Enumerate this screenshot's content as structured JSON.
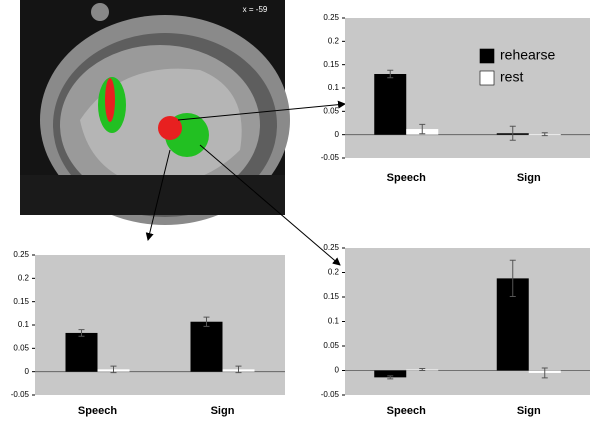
{
  "image": {
    "label": "x = -59"
  },
  "chart_data": [
    {
      "type": "bar",
      "categories": [
        "Speech",
        "Sign"
      ],
      "ylim": [
        -0.05,
        0.25
      ],
      "yticks": [
        -0.05,
        0,
        0.05,
        0.1,
        0.15,
        0.2,
        0.25
      ],
      "legend": true,
      "series": [
        {
          "name": "rehearse",
          "color": "#000000",
          "values": [
            0.13,
            0.003
          ],
          "errors": [
            0.008,
            0.015
          ]
        },
        {
          "name": "rest",
          "color": "#ffffff",
          "values": [
            0.012,
            0.001
          ],
          "errors": [
            0.01,
            0.003
          ]
        }
      ]
    },
    {
      "type": "bar",
      "categories": [
        "Speech",
        "Sign"
      ],
      "ylim": [
        -0.05,
        0.25
      ],
      "yticks": [
        -0.05,
        0,
        0.05,
        0.1,
        0.15,
        0.2,
        0.25
      ],
      "legend": false,
      "series": [
        {
          "name": "rehearse",
          "color": "#000000",
          "values": [
            0.083,
            0.107
          ],
          "errors": [
            0.007,
            0.01
          ]
        },
        {
          "name": "rest",
          "color": "#ffffff",
          "values": [
            0.005,
            0.005
          ],
          "errors": [
            0.007,
            0.007
          ]
        }
      ]
    },
    {
      "type": "bar",
      "categories": [
        "Speech",
        "Sign"
      ],
      "ylim": [
        -0.05,
        0.25
      ],
      "yticks": [
        -0.05,
        0,
        0.05,
        0.1,
        0.15,
        0.2,
        0.25
      ],
      "legend": false,
      "series": [
        {
          "name": "rehearse",
          "color": "#000000",
          "values": [
            -0.014,
            0.188
          ],
          "errors": [
            0.003,
            0.037
          ]
        },
        {
          "name": "rest",
          "color": "#ffffff",
          "values": [
            0.002,
            -0.005
          ],
          "errors": [
            0.002,
            0.01
          ]
        }
      ]
    }
  ]
}
